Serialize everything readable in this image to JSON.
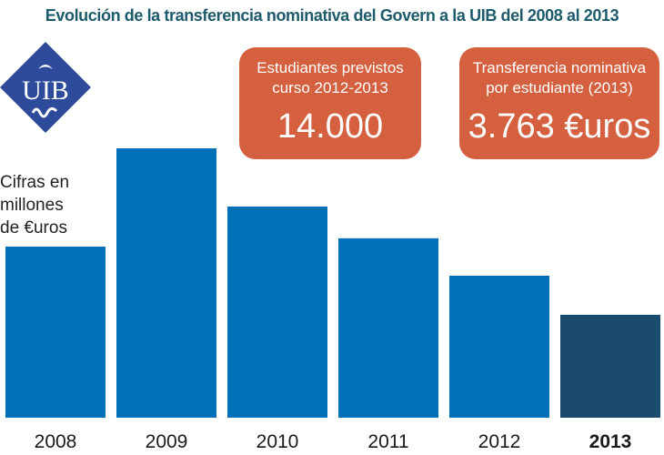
{
  "header": {
    "title": "Evolución de la transferencia nominativa del Govern a la UIB del 2008 al 2013"
  },
  "logo": {
    "text": "UIB",
    "color": "#2e4a9a"
  },
  "note": {
    "lines": [
      "Cifras en",
      "millones",
      "de €uros"
    ]
  },
  "boxes": [
    {
      "label_lines": [
        "Estudiantes previstos",
        "curso 2012-2013"
      ],
      "value": "14.000"
    },
    {
      "label_lines": [
        "Transferencia nominativa",
        "por estudiante (2013)"
      ],
      "value": "3.763 €uros"
    }
  ],
  "colors": {
    "bar": "#0070b8",
    "bar_highlight": "#1a4a6e",
    "box": "#d4603f",
    "title": "#1d5a6b"
  },
  "chart_data": {
    "type": "bar",
    "title": "Evolución de la transferencia nominativa del Govern a la UIB del 2008 al 2013",
    "categories": [
      "2008",
      "2009",
      "2010",
      "2011",
      "2012",
      "2013"
    ],
    "values": [
      63.5,
      100,
      78.4,
      66.6,
      52.7,
      38.2
    ],
    "highlight": "2013",
    "xlabel": "",
    "ylabel": "Cifras en millones de €uros",
    "ylim": [
      0,
      100
    ],
    "grid": false
  }
}
